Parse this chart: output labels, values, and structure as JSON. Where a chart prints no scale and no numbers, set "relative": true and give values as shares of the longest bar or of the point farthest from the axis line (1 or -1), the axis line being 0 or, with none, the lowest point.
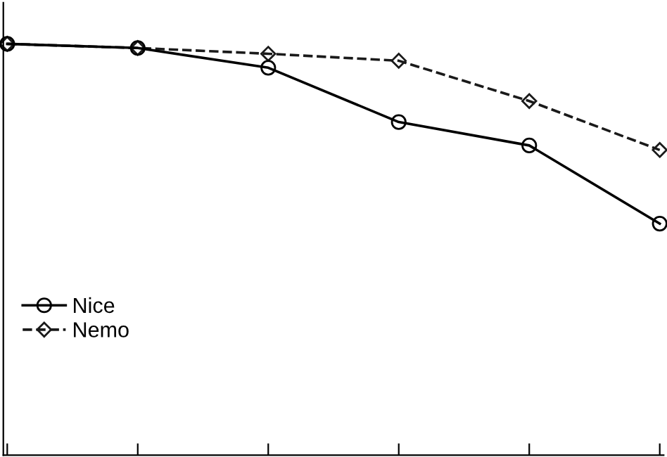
{
  "chart_data": {
    "type": "line",
    "relative": true,
    "categories": [
      null,
      null,
      null,
      null,
      null,
      null
    ],
    "series": [
      {
        "name": "Nice",
        "color": "#000000",
        "marker": "circle",
        "line_style": "solid",
        "values": [
          1,
          0.99,
          0.942,
          0.81,
          0.753,
          0.563
        ]
      },
      {
        "name": "Nemo",
        "color": "#1a1a1a",
        "marker": "diamond",
        "line_style": "dashed",
        "values": [
          1,
          0.99,
          0.976,
          0.959,
          0.861,
          0.742
        ]
      }
    ],
    "legend": "left",
    "grid": false
  }
}
